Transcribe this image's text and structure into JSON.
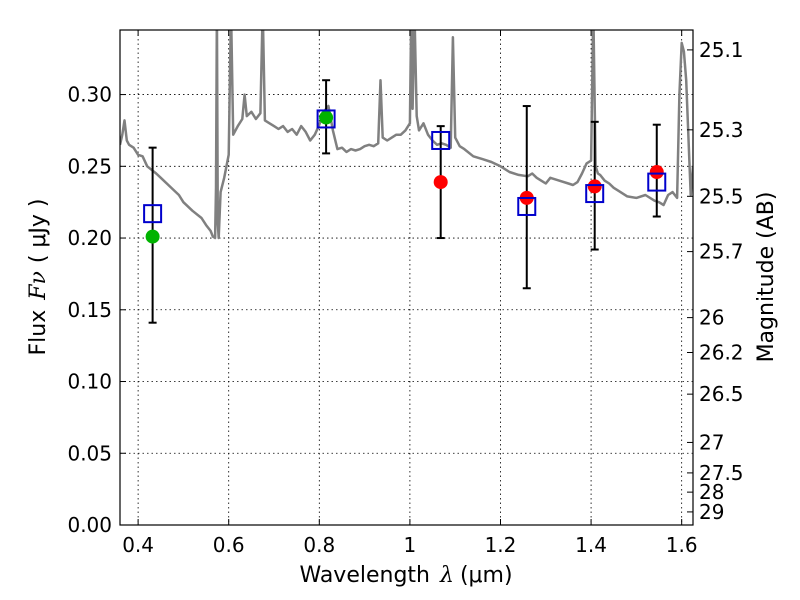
{
  "chart_data": {
    "type": "scatter",
    "xlabel": "Wavelength",
    "xlabel_symbol": "λ",
    "xlabel_unit": "(μm)",
    "ylabel": "Flux",
    "ylabel_symbol": "Fν",
    "ylabel_unit": "( μJy )",
    "y2label": "Magnitude (AB)",
    "xlim": [
      0.36,
      1.625
    ],
    "ylim": [
      0.0,
      0.345
    ],
    "grid": true,
    "xticks": [
      0.4,
      0.6,
      0.8,
      1.0,
      1.2,
      1.4,
      1.6
    ],
    "xtick_labels": [
      "0.4",
      "0.6",
      "0.8",
      "1",
      "1.2",
      "1.4",
      "1.6"
    ],
    "yticks": [
      0.0,
      0.05,
      0.1,
      0.15,
      0.2,
      0.25,
      0.3
    ],
    "ytick_labels": [
      "0.00",
      "0.05",
      "0.10",
      "0.15",
      "0.20",
      "0.25",
      "0.30"
    ],
    "mag_ticks": [
      25.1,
      25.3,
      25.5,
      25.7,
      26,
      26.2,
      26.5,
      27,
      27.5,
      28,
      29
    ],
    "mag_tick_labels": [
      "25.1",
      "25.3",
      "25.5",
      "25.7",
      "26",
      "26.2",
      "26.5",
      "27",
      "27.5",
      "28",
      "29"
    ],
    "series": [
      {
        "name": "observed-green",
        "color": "#00b300",
        "marker": "circle",
        "x": [
          0.432,
          0.815
        ],
        "y": [
          0.201,
          0.284
        ],
        "yerr_low": [
          0.141,
          0.259
        ],
        "yerr_high": [
          0.263,
          0.31
        ]
      },
      {
        "name": "observed-red",
        "color": "#ff0000",
        "marker": "circle",
        "x": [
          1.068,
          1.258,
          1.408,
          1.545
        ],
        "y": [
          0.239,
          0.228,
          0.236,
          0.246
        ],
        "yerr_low": [
          0.2,
          0.165,
          0.192,
          0.215
        ],
        "yerr_high": [
          0.278,
          0.292,
          0.281,
          0.279
        ]
      },
      {
        "name": "model-photometry",
        "color": "#0000cc",
        "marker": "open-square",
        "x": [
          0.432,
          0.815,
          1.068,
          1.258,
          1.408,
          1.545
        ],
        "y": [
          0.217,
          0.283,
          0.268,
          0.222,
          0.231,
          0.239
        ]
      }
    ],
    "model_spectrum": {
      "color": "#808080",
      "x": [
        0.36,
        0.365,
        0.37,
        0.375,
        0.38,
        0.39,
        0.4,
        0.41,
        0.42,
        0.44,
        0.45,
        0.47,
        0.49,
        0.5,
        0.52,
        0.54,
        0.55,
        0.56,
        0.565,
        0.57,
        0.572,
        0.574,
        0.576,
        0.578,
        0.582,
        0.59,
        0.6,
        0.605,
        0.61,
        0.62,
        0.63,
        0.635,
        0.64,
        0.65,
        0.66,
        0.67,
        0.675,
        0.68,
        0.69,
        0.7,
        0.71,
        0.72,
        0.73,
        0.74,
        0.75,
        0.76,
        0.77,
        0.78,
        0.79,
        0.8,
        0.81,
        0.82,
        0.83,
        0.84,
        0.85,
        0.86,
        0.87,
        0.88,
        0.89,
        0.9,
        0.91,
        0.92,
        0.93,
        0.935,
        0.94,
        0.95,
        0.96,
        0.97,
        0.98,
        0.99,
        1.0,
        1.003,
        1.006,
        1.01,
        1.015,
        1.02,
        1.03,
        1.04,
        1.05,
        1.06,
        1.07,
        1.08,
        1.09,
        1.095,
        1.1,
        1.11,
        1.12,
        1.14,
        1.16,
        1.18,
        1.2,
        1.22,
        1.24,
        1.26,
        1.27,
        1.28,
        1.29,
        1.3,
        1.31,
        1.33,
        1.35,
        1.36,
        1.37,
        1.38,
        1.39,
        1.4,
        1.405,
        1.41,
        1.415,
        1.42,
        1.43,
        1.44,
        1.45,
        1.46,
        1.48,
        1.5,
        1.52,
        1.54,
        1.55,
        1.56,
        1.57,
        1.58,
        1.59,
        1.595,
        1.6,
        1.605,
        1.61,
        1.62,
        1.625
      ],
      "y": [
        0.265,
        0.272,
        0.282,
        0.268,
        0.265,
        0.263,
        0.258,
        0.257,
        0.25,
        0.245,
        0.242,
        0.236,
        0.23,
        0.225,
        0.219,
        0.214,
        0.209,
        0.205,
        0.201,
        0.2,
        0.235,
        0.36,
        0.21,
        0.2,
        0.232,
        0.242,
        0.258,
        0.36,
        0.272,
        0.278,
        0.283,
        0.3,
        0.285,
        0.288,
        0.283,
        0.287,
        0.36,
        0.282,
        0.28,
        0.278,
        0.276,
        0.278,
        0.274,
        0.276,
        0.272,
        0.278,
        0.274,
        0.268,
        0.272,
        0.279,
        0.288,
        0.292,
        0.275,
        0.262,
        0.263,
        0.26,
        0.262,
        0.261,
        0.262,
        0.264,
        0.265,
        0.264,
        0.266,
        0.31,
        0.27,
        0.268,
        0.27,
        0.272,
        0.272,
        0.275,
        0.28,
        0.36,
        0.29,
        0.36,
        0.285,
        0.275,
        0.28,
        0.272,
        0.268,
        0.265,
        0.266,
        0.265,
        0.263,
        0.34,
        0.27,
        0.264,
        0.262,
        0.257,
        0.255,
        0.253,
        0.25,
        0.246,
        0.244,
        0.243,
        0.245,
        0.242,
        0.24,
        0.238,
        0.242,
        0.24,
        0.238,
        0.237,
        0.239,
        0.245,
        0.252,
        0.254,
        0.36,
        0.25,
        0.245,
        0.244,
        0.24,
        0.238,
        0.235,
        0.233,
        0.229,
        0.228,
        0.23,
        0.226,
        0.225,
        0.223,
        0.23,
        0.232,
        0.228,
        0.3,
        0.336,
        0.33,
        0.31,
        0.23,
        0.25
      ]
    }
  }
}
